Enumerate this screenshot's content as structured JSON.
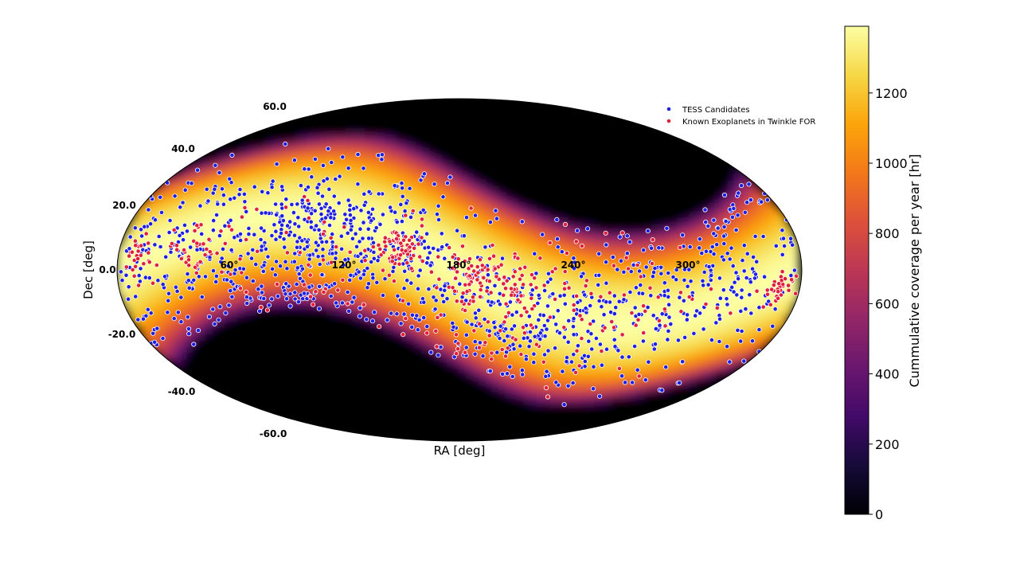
{
  "chart_data": {
    "type": "scatter",
    "projection": "mollweide",
    "xlabel": "RA [deg]",
    "ylabel": "Dec [deg]",
    "ra_ticks": [
      60,
      120,
      180,
      240,
      300
    ],
    "ra_tick_labels": [
      "60°",
      "120°",
      "180°",
      "240°",
      "300°"
    ],
    "dec_ticks": [
      60,
      40,
      20,
      0,
      -20,
      -40,
      -60
    ],
    "dec_tick_labels": [
      "60.0",
      "40.0",
      "20.0",
      "0.0",
      "-20.0",
      "-40.0",
      "-60.0"
    ],
    "colorbar": {
      "label": "Cummulative coverage per year [hr]",
      "range": [
        0,
        1390
      ],
      "ticks": [
        0,
        200,
        400,
        600,
        800,
        1000,
        1200
      ],
      "tick_labels": [
        "0",
        "200",
        "400",
        "600",
        "800",
        "1000",
        "1200"
      ],
      "colormap": "inferno"
    },
    "legend": {
      "placement": "top-right",
      "entries": [
        {
          "label": "TESS Candidates",
          "color": "#1f1fe0"
        },
        {
          "label": "Known Exoplanets in Twinkle FOR",
          "color": "#e0203a"
        }
      ]
    },
    "field_of_regard": {
      "description_values": "coverage band along the ecliptic; dark regions near ecliptic poles",
      "ecliptic_obliquity_deg": 23.4,
      "band_halfwidth_deg": 40
    },
    "series": [
      {
        "name": "TESS Candidates",
        "color": "#1f1fe0",
        "clusters": [
          {
            "ra": 100,
            "dec": 10,
            "spread_ra": 28,
            "spread_dec": 18,
            "count": 380
          },
          {
            "ra": 30,
            "dec": 5,
            "spread_ra": 25,
            "spread_dec": 22,
            "count": 170
          },
          {
            "ra": 160,
            "dec": 5,
            "spread_ra": 25,
            "spread_dec": 20,
            "count": 140
          },
          {
            "ra": 215,
            "dec": -25,
            "spread_ra": 30,
            "spread_dec": 14,
            "count": 220
          },
          {
            "ra": 285,
            "dec": -10,
            "spread_ra": 30,
            "spread_dec": 20,
            "count": 160
          },
          {
            "ra": 330,
            "dec": 5,
            "spread_ra": 20,
            "spread_dec": 25,
            "count": 120
          }
        ]
      },
      {
        "name": "Known Exoplanets in Twinkle FOR",
        "color": "#e0203a",
        "clusters": [
          {
            "ra": 148,
            "dec": 8,
            "spread_ra": 7,
            "spread_dec": 6,
            "count": 70
          },
          {
            "ra": 185,
            "dec": -3,
            "spread_ra": 7,
            "spread_dec": 5,
            "count": 55
          },
          {
            "ra": 210,
            "dec": -5,
            "spread_ra": 5,
            "spread_dec": 4,
            "count": 25
          },
          {
            "ra": 40,
            "dec": 10,
            "spread_ra": 8,
            "spread_dec": 6,
            "count": 35
          },
          {
            "ra": 10,
            "dec": 5,
            "spread_ra": 5,
            "spread_dec": 5,
            "count": 25
          },
          {
            "ra": 347,
            "dec": -9,
            "spread_ra": 4,
            "spread_dec": 4,
            "count": 30
          },
          {
            "ra": 195,
            "dec": -20,
            "spread_ra": 25,
            "spread_dec": 15,
            "count": 80
          },
          {
            "ra": 260,
            "dec": -10,
            "spread_ra": 30,
            "spread_dec": 20,
            "count": 70
          },
          {
            "ra": 90,
            "dec": 5,
            "spread_ra": 30,
            "spread_dec": 20,
            "count": 50
          }
        ]
      }
    ]
  }
}
